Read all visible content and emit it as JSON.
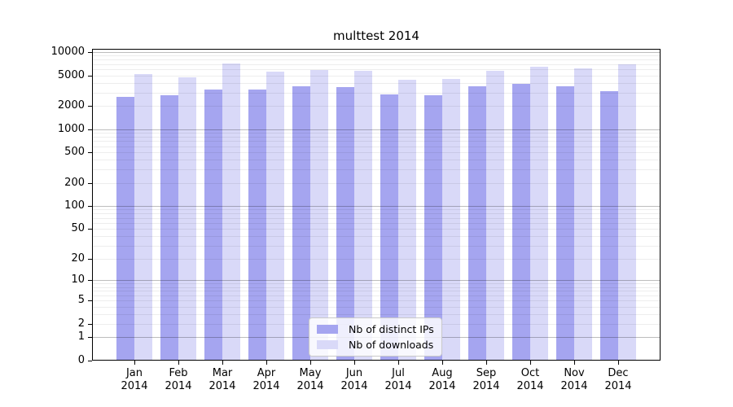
{
  "chart_data": {
    "type": "bar",
    "title": "multtest 2014",
    "categories": [
      "Jan 2014",
      "Feb 2014",
      "Mar 2014",
      "Apr 2014",
      "May 2014",
      "Jun 2014",
      "Jul 2014",
      "Aug 2014",
      "Sep 2014",
      "Oct 2014",
      "Nov 2014",
      "Dec 2014"
    ],
    "series": [
      {
        "name": "Nb of distinct IPs",
        "color": "#a5a5f0",
        "values": [
          2660,
          2740,
          3260,
          3260,
          3640,
          3560,
          2820,
          2760,
          3610,
          3870,
          3600,
          3100
        ]
      },
      {
        "name": "Nb of downloads",
        "color": "#d9d9f8",
        "values": [
          5220,
          4700,
          7100,
          5570,
          5900,
          5680,
          4370,
          4480,
          5680,
          6450,
          6140,
          6940
        ]
      }
    ],
    "xlabel": "",
    "ylabel": "",
    "yscale": "log1p",
    "ylim": [
      0,
      10000
    ],
    "yticks": [
      0,
      1,
      2,
      5,
      10,
      20,
      50,
      100,
      200,
      500,
      1000,
      2000,
      5000,
      10000
    ],
    "grid": "on",
    "gridline_major_values": [
      1,
      10,
      100,
      1000,
      10000
    ],
    "legend_position": "lower center"
  }
}
